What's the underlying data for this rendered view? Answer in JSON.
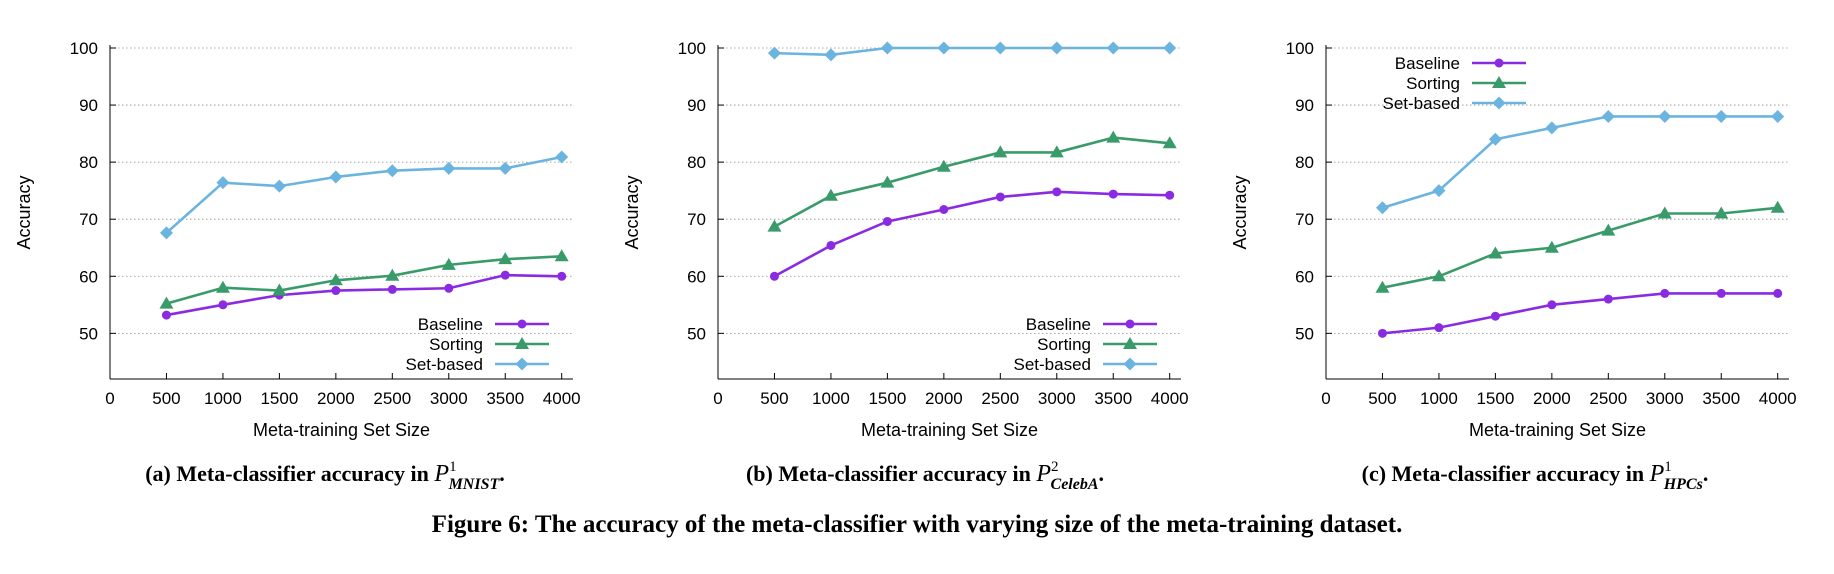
{
  "figure_caption": "Figure 6: The accuracy of the meta-classifier with varying size of the meta-training dataset.",
  "colors": {
    "Baseline": "#8a2be2",
    "Sorting": "#3a9b6a",
    "Set-based": "#6cb4e0"
  },
  "chart_data": [
    {
      "type": "line",
      "caption_prefix": "(a) Meta-classifier accuracy in",
      "caption_sym": "P",
      "caption_sup": "1",
      "caption_sub": "MNIST",
      "caption_suffix": ".",
      "xlabel": "Meta-training Set Size",
      "ylabel": "Accuracy",
      "xlim": [
        0,
        4100
      ],
      "ylim": [
        42,
        100
      ],
      "xticks": [
        0,
        500,
        1000,
        1500,
        2000,
        2500,
        3000,
        3500,
        4000
      ],
      "yticks": [
        50,
        60,
        70,
        80,
        90,
        100
      ],
      "grid": true,
      "legend_position": "bottom-right",
      "x": [
        500,
        1000,
        1500,
        2000,
        2500,
        3000,
        3500,
        4000
      ],
      "series": [
        {
          "name": "Baseline",
          "marker": "circle",
          "values": [
            53.2,
            55.0,
            56.7,
            57.5,
            57.7,
            57.9,
            60.2,
            60.0
          ]
        },
        {
          "name": "Sorting",
          "marker": "triangle",
          "values": [
            55.2,
            58.0,
            57.5,
            59.3,
            60.1,
            62.0,
            63.0,
            63.5
          ]
        },
        {
          "name": "Set-based",
          "marker": "diamond",
          "values": [
            67.6,
            76.4,
            75.8,
            77.4,
            78.5,
            78.9,
            78.9,
            80.9
          ]
        }
      ]
    },
    {
      "type": "line",
      "caption_prefix": "(b) Meta-classifier accuracy in",
      "caption_sym": "P",
      "caption_sup": "2",
      "caption_sub": "CelebA",
      "caption_suffix": ".",
      "xlabel": "Meta-training Set Size",
      "ylabel": "Accuracy",
      "xlim": [
        0,
        4100
      ],
      "ylim": [
        42,
        100
      ],
      "xticks": [
        0,
        500,
        1000,
        1500,
        2000,
        2500,
        3000,
        3500,
        4000
      ],
      "yticks": [
        50,
        60,
        70,
        80,
        90,
        100
      ],
      "grid": true,
      "legend_position": "bottom-right",
      "x": [
        500,
        1000,
        1500,
        2000,
        2500,
        3000,
        3500,
        4000
      ],
      "series": [
        {
          "name": "Baseline",
          "marker": "circle",
          "values": [
            60.0,
            65.4,
            69.6,
            71.7,
            73.9,
            74.8,
            74.4,
            74.2
          ]
        },
        {
          "name": "Sorting",
          "marker": "triangle",
          "values": [
            68.7,
            74.1,
            76.4,
            79.2,
            81.7,
            81.7,
            84.3,
            83.3
          ]
        },
        {
          "name": "Set-based",
          "marker": "diamond",
          "values": [
            99.1,
            98.8,
            100.0,
            100.0,
            100.0,
            100.0,
            100.0,
            100.0
          ]
        }
      ]
    },
    {
      "type": "line",
      "caption_prefix": "(c) Meta-classifier accuracy in",
      "caption_sym": "P",
      "caption_sup": "1",
      "caption_sub": "HPCs",
      "caption_suffix": ".",
      "xlabel": "Meta-training Set Size",
      "ylabel": "Accuracy",
      "xlim": [
        0,
        4100
      ],
      "ylim": [
        42,
        100
      ],
      "xticks": [
        0,
        500,
        1000,
        1500,
        2000,
        2500,
        3000,
        3500,
        4000
      ],
      "yticks": [
        50,
        60,
        70,
        80,
        90,
        100
      ],
      "grid": true,
      "legend_position": "top-left",
      "x": [
        500,
        1000,
        1500,
        2000,
        2500,
        3000,
        3500,
        4000
      ],
      "series": [
        {
          "name": "Baseline",
          "marker": "circle",
          "values": [
            50,
            51,
            53,
            55,
            56,
            57,
            57,
            57
          ]
        },
        {
          "name": "Sorting",
          "marker": "triangle",
          "values": [
            58,
            60,
            64,
            65,
            68,
            71,
            71,
            72
          ]
        },
        {
          "name": "Set-based",
          "marker": "diamond",
          "values": [
            72,
            75,
            84,
            86,
            88,
            88,
            88,
            88
          ]
        }
      ]
    }
  ]
}
